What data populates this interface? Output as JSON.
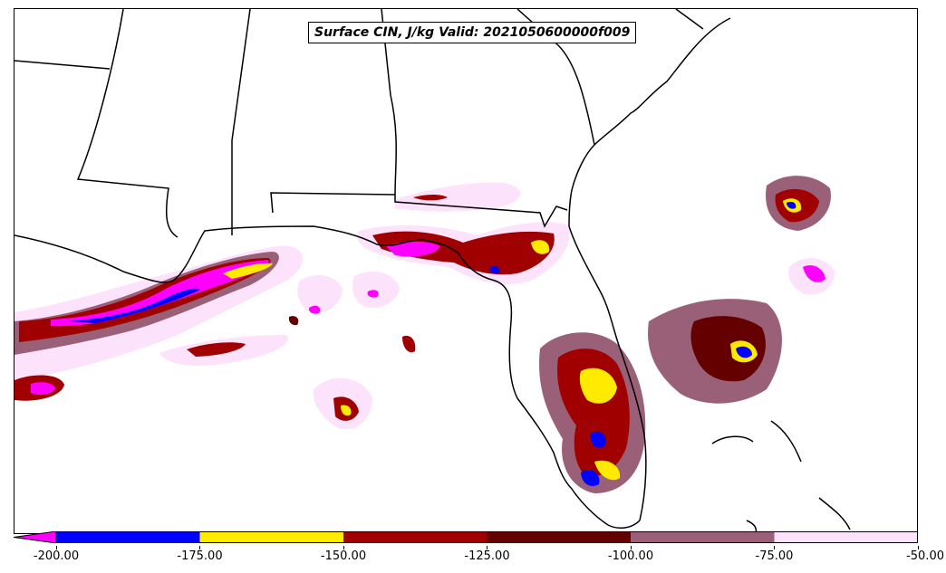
{
  "title": "Surface CIN, J/kg Valid: 2021050600000f009",
  "colors": {
    "c_200": "#ff00ff",
    "c_175": "#0000ff",
    "c_150": "#ffea00",
    "c_125": "#a00000",
    "c_100": "#640000",
    "c_75": "#9a6078",
    "c_50": "#fde2fb",
    "land_edge": "#000000"
  },
  "colorbar": {
    "ticks": [
      "-200.00",
      "-175.00",
      "-150.00",
      "-125.00",
      "-100.00",
      "-75.00",
      "-50.00"
    ],
    "segments": [
      {
        "label": "-200 to -175",
        "color": "#0000ff"
      },
      {
        "label": "-175 to -150",
        "color": "#ffea00"
      },
      {
        "label": "-150 to -125",
        "color": "#a00000"
      },
      {
        "label": "-125 to -100",
        "color": "#640000"
      },
      {
        "label": "-100 to -75",
        "color": "#9a6078"
      },
      {
        "label": "-75 to -50",
        "color": "#fde2fb"
      }
    ],
    "extend_min_color": "#ff00ff"
  }
}
